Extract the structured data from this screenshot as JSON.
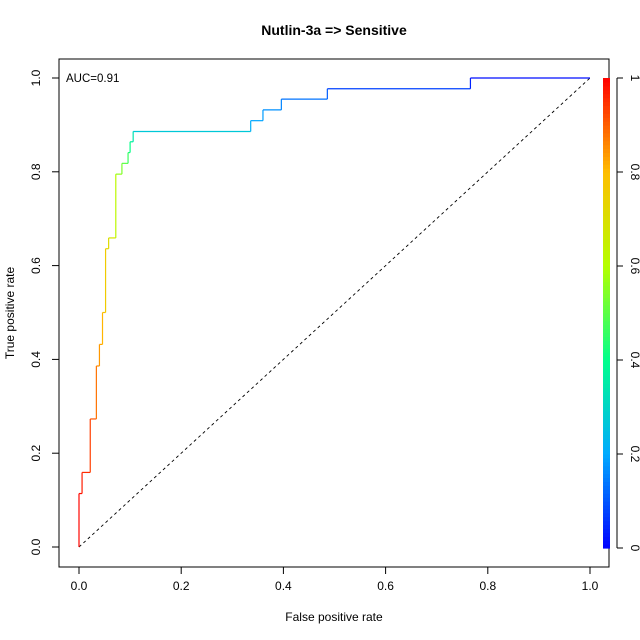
{
  "chart_data": {
    "type": "line",
    "title": "Nutlin-3a => Sensitive",
    "xlabel": "False positive rate",
    "ylabel": "True positive rate",
    "xlim": [
      0,
      1
    ],
    "ylim": [
      0,
      1
    ],
    "x_ticks": [
      "0.0",
      "0.2",
      "0.4",
      "0.6",
      "0.8",
      "1.0"
    ],
    "y_ticks": [
      "0.0",
      "0.2",
      "0.4",
      "0.6",
      "0.8",
      "1.0"
    ],
    "annotation": "AUC=0.91",
    "diagonal_reference": true,
    "color_scale": "rainbow (blue at 0 to red at 1)",
    "colorbar_ticks": [
      "0",
      "0.2",
      "0.4",
      "0.6",
      "0.8",
      "1"
    ],
    "grid": false,
    "roc_points": [
      {
        "fpr": 0.0,
        "tpr": 0.0,
        "cutoff": 1.0
      },
      {
        "fpr": 0.0,
        "tpr": 0.114,
        "cutoff": 0.99
      },
      {
        "fpr": 0.006,
        "tpr": 0.114,
        "cutoff": 0.98
      },
      {
        "fpr": 0.006,
        "tpr": 0.159,
        "cutoff": 0.96
      },
      {
        "fpr": 0.022,
        "tpr": 0.159,
        "cutoff": 0.95
      },
      {
        "fpr": 0.022,
        "tpr": 0.273,
        "cutoff": 0.92
      },
      {
        "fpr": 0.034,
        "tpr": 0.273,
        "cutoff": 0.9
      },
      {
        "fpr": 0.034,
        "tpr": 0.386,
        "cutoff": 0.86
      },
      {
        "fpr": 0.04,
        "tpr": 0.386,
        "cutoff": 0.85
      },
      {
        "fpr": 0.04,
        "tpr": 0.432,
        "cutoff": 0.83
      },
      {
        "fpr": 0.046,
        "tpr": 0.432,
        "cutoff": 0.82
      },
      {
        "fpr": 0.046,
        "tpr": 0.5,
        "cutoff": 0.8
      },
      {
        "fpr": 0.052,
        "tpr": 0.5,
        "cutoff": 0.78
      },
      {
        "fpr": 0.052,
        "tpr": 0.636,
        "cutoff": 0.74
      },
      {
        "fpr": 0.058,
        "tpr": 0.636,
        "cutoff": 0.72
      },
      {
        "fpr": 0.058,
        "tpr": 0.659,
        "cutoff": 0.7
      },
      {
        "fpr": 0.072,
        "tpr": 0.659,
        "cutoff": 0.66
      },
      {
        "fpr": 0.072,
        "tpr": 0.795,
        "cutoff": 0.58
      },
      {
        "fpr": 0.084,
        "tpr": 0.795,
        "cutoff": 0.55
      },
      {
        "fpr": 0.084,
        "tpr": 0.818,
        "cutoff": 0.52
      },
      {
        "fpr": 0.096,
        "tpr": 0.818,
        "cutoff": 0.48
      },
      {
        "fpr": 0.096,
        "tpr": 0.841,
        "cutoff": 0.45
      },
      {
        "fpr": 0.1,
        "tpr": 0.841,
        "cutoff": 0.42
      },
      {
        "fpr": 0.1,
        "tpr": 0.864,
        "cutoff": 0.39
      },
      {
        "fpr": 0.106,
        "tpr": 0.864,
        "cutoff": 0.36
      },
      {
        "fpr": 0.106,
        "tpr": 0.886,
        "cutoff": 0.32
      },
      {
        "fpr": 0.336,
        "tpr": 0.886,
        "cutoff": 0.22
      },
      {
        "fpr": 0.336,
        "tpr": 0.909,
        "cutoff": 0.2
      },
      {
        "fpr": 0.36,
        "tpr": 0.909,
        "cutoff": 0.19
      },
      {
        "fpr": 0.36,
        "tpr": 0.932,
        "cutoff": 0.18
      },
      {
        "fpr": 0.396,
        "tpr": 0.932,
        "cutoff": 0.16
      },
      {
        "fpr": 0.396,
        "tpr": 0.955,
        "cutoff": 0.15
      },
      {
        "fpr": 0.486,
        "tpr": 0.955,
        "cutoff": 0.12
      },
      {
        "fpr": 0.486,
        "tpr": 0.977,
        "cutoff": 0.1
      },
      {
        "fpr": 0.766,
        "tpr": 0.977,
        "cutoff": 0.05
      },
      {
        "fpr": 0.766,
        "tpr": 1.0,
        "cutoff": 0.03
      },
      {
        "fpr": 1.0,
        "tpr": 1.0,
        "cutoff": 0.0
      }
    ]
  }
}
